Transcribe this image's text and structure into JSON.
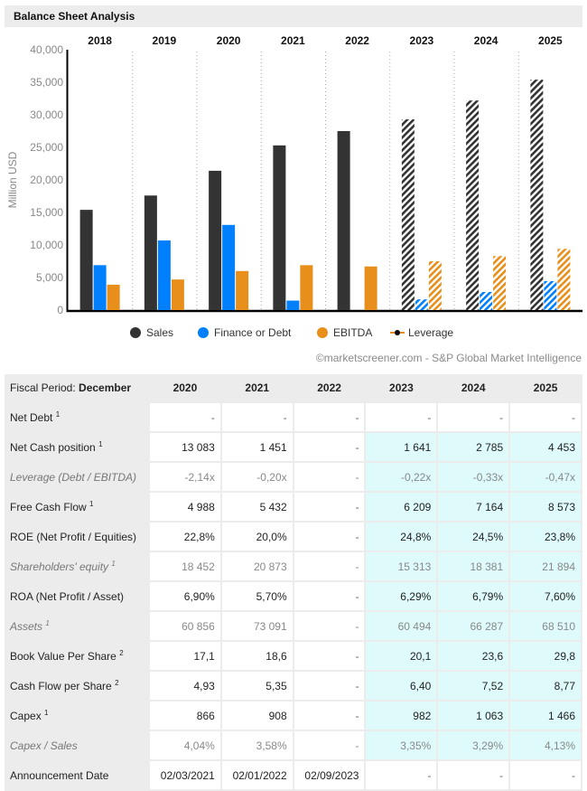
{
  "title": "Balance Sheet Analysis",
  "source": "©marketscreener.com - S&P Global Market Intelligence",
  "colors": {
    "sales": "#333333",
    "debt": "#0080ff",
    "ebitda": "#e88e1a",
    "forecast_bg": "#defafb",
    "header_bg": "#ececec"
  },
  "chart_data": {
    "type": "bar",
    "title": "Balance Sheet Analysis",
    "xlabel": "",
    "ylabel": "Million USD",
    "ylim": [
      0,
      40000
    ],
    "yticks": [
      "0",
      "5,000",
      "10,000",
      "15,000",
      "20,000",
      "25,000",
      "30,000",
      "35,000",
      "40,000"
    ],
    "ytick_values": [
      0,
      5000,
      10000,
      15000,
      20000,
      25000,
      30000,
      35000,
      40000
    ],
    "categories": [
      "2018",
      "2019",
      "2020",
      "2021",
      "2022",
      "2023",
      "2024",
      "2025"
    ],
    "forecast_from": "2023",
    "grid": "vertical dotted separators",
    "legend_position": "bottom",
    "series": [
      {
        "name": "Sales",
        "legend_icon": "circle",
        "values": [
          15400,
          17600,
          21400,
          25300,
          27500,
          29300,
          32200,
          35400
        ]
      },
      {
        "name": "Finance or Debt",
        "legend_icon": "circle",
        "values": [
          6900,
          10700,
          13083,
          1451,
          null,
          1641,
          2785,
          4453
        ]
      },
      {
        "name": "EBITDA",
        "legend_icon": "circle",
        "values": [
          3900,
          4700,
          6000,
          6900,
          6700,
          7500,
          8300,
          9400
        ]
      },
      {
        "name": "Leverage",
        "legend_icon": "line-marker",
        "values": [
          null,
          null,
          -2.14,
          -0.2,
          null,
          -0.22,
          -0.33,
          -0.47
        ]
      }
    ]
  },
  "table": {
    "header_label": "Fiscal Period: ",
    "header_label_bold": "December",
    "columns": [
      "2020",
      "2021",
      "2022",
      "2023",
      "2024",
      "2025"
    ],
    "forecast_columns": [
      3,
      4,
      5
    ],
    "rows": [
      {
        "label": "Net Debt",
        "sup": "1",
        "italic": false,
        "values": [
          "-",
          "-",
          "-",
          "-",
          "-",
          "-"
        ],
        "forecast_shaded": false
      },
      {
        "label": "Net Cash position",
        "sup": "1",
        "italic": false,
        "values": [
          "13 083",
          "1 451",
          "-",
          "1 641",
          "2 785",
          "4 453"
        ],
        "forecast_shaded": true
      },
      {
        "label": "Leverage (Debt / EBITDA)",
        "sup": "",
        "italic": true,
        "values": [
          "-2,14x",
          "-0,20x",
          "-",
          "-0,22x",
          "-0,33x",
          "-0,47x"
        ],
        "forecast_shaded": true
      },
      {
        "label": "Free Cash Flow",
        "sup": "1",
        "italic": false,
        "values": [
          "4 988",
          "5 432",
          "-",
          "6 209",
          "7 164",
          "8 573"
        ],
        "forecast_shaded": true
      },
      {
        "label": "ROE (Net Profit / Equities)",
        "sup": "",
        "italic": false,
        "values": [
          "22,8%",
          "20,0%",
          "-",
          "24,8%",
          "24,5%",
          "23,8%"
        ],
        "forecast_shaded": true
      },
      {
        "label": "Shareholders' equity",
        "sup": "1",
        "italic": true,
        "values": [
          "18 452",
          "20 873",
          "-",
          "15 313",
          "18 381",
          "21 894"
        ],
        "forecast_shaded": true
      },
      {
        "label": "ROA (Net Profit / Asset)",
        "sup": "",
        "italic": false,
        "values": [
          "6,90%",
          "5,70%",
          "-",
          "6,29%",
          "6,79%",
          "7,60%"
        ],
        "forecast_shaded": true
      },
      {
        "label": "Assets",
        "sup": "1",
        "italic": true,
        "values": [
          "60 856",
          "73 091",
          "-",
          "60 494",
          "66 287",
          "68 510"
        ],
        "forecast_shaded": true
      },
      {
        "label": "Book Value Per Share",
        "sup": "2",
        "italic": false,
        "values": [
          "17,1",
          "18,6",
          "-",
          "20,1",
          "23,6",
          "29,8"
        ],
        "forecast_shaded": true
      },
      {
        "label": "Cash Flow per Share",
        "sup": "2",
        "italic": false,
        "values": [
          "4,93",
          "5,35",
          "-",
          "6,40",
          "7,52",
          "8,77"
        ],
        "forecast_shaded": true
      },
      {
        "label": "Capex",
        "sup": "1",
        "italic": false,
        "values": [
          "866",
          "908",
          "-",
          "982",
          "1 063",
          "1 466"
        ],
        "forecast_shaded": true
      },
      {
        "label": "Capex / Sales",
        "sup": "",
        "italic": true,
        "values": [
          "4,04%",
          "3,58%",
          "-",
          "3,35%",
          "3,29%",
          "4,13%"
        ],
        "forecast_shaded": true
      },
      {
        "label": "Announcement Date",
        "sup": "",
        "italic": false,
        "values": [
          "02/03/2021",
          "02/01/2022",
          "02/09/2023",
          "-",
          "-",
          "-"
        ],
        "forecast_shaded": false
      }
    ]
  }
}
